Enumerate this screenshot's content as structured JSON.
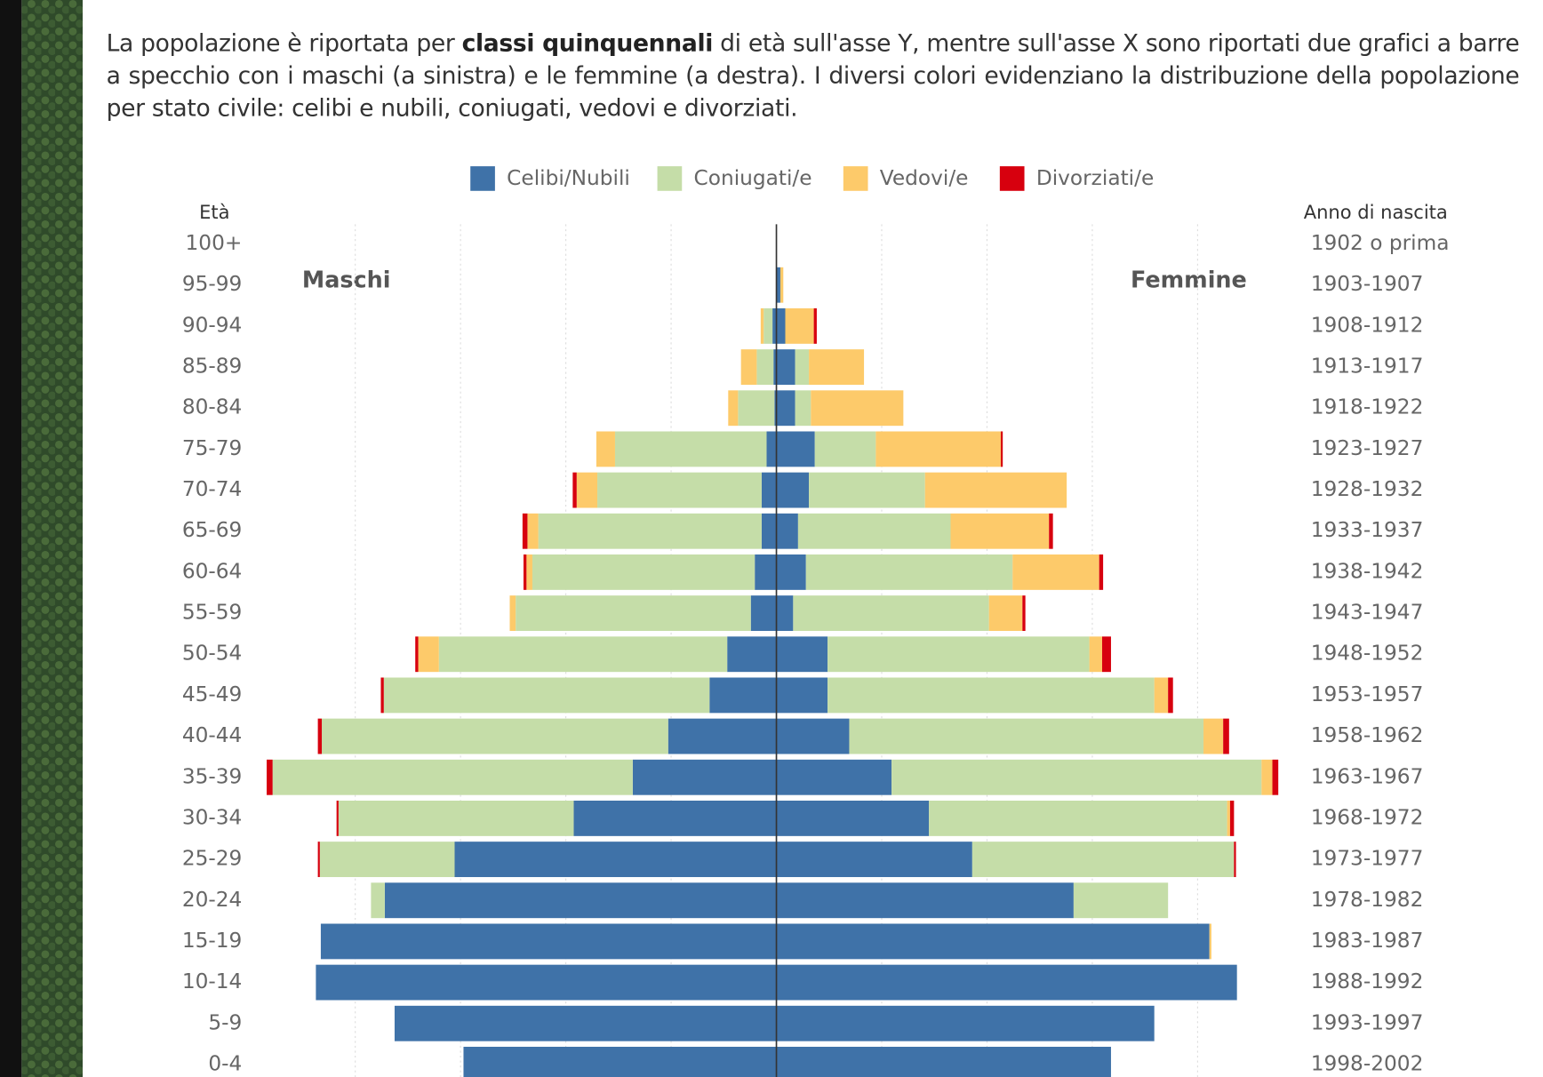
{
  "intro": {
    "before": "La popolazione è riportata per ",
    "bold": "classi quinquennali",
    "after": " di età sull'asse Y, mentre sull'asse X sono riportati due grafici a barre a specchio con i maschi (a sinistra) e le femmine (a destra). I diversi colori evidenziano la distribuzione della popolazione per stato civile: celibi e nubili, coniugati, vedovi e divorziati."
  },
  "chart_data": {
    "type": "pyramid",
    "y_label": "Età",
    "y2_label": "Anno di nascita",
    "left_label": "Maschi",
    "right_label": "Femmine",
    "categories": [
      "100+",
      "95-99",
      "90-94",
      "85-89",
      "80-84",
      "75-79",
      "70-74",
      "65-69",
      "60-64",
      "55-59",
      "50-54",
      "45-49",
      "40-44",
      "35-39",
      "30-34",
      "25-29",
      "20-24",
      "15-19",
      "10-14",
      "5-9",
      "0-4"
    ],
    "birth_years": [
      "1902 o prima",
      "1903-1907",
      "1908-1912",
      "1913-1917",
      "1918-1922",
      "1923-1927",
      "1928-1932",
      "1933-1937",
      "1938-1942",
      "1943-1947",
      "1948-1952",
      "1953-1957",
      "1958-1962",
      "1963-1967",
      "1968-1972",
      "1973-1977",
      "1978-1982",
      "1983-1987",
      "1988-1992",
      "1993-1997",
      "1998-2002"
    ],
    "series": [
      {
        "name": "Celibi/Nubili",
        "color": "#3f72a8",
        "male": [
          0,
          0,
          4,
          3,
          2,
          10,
          15,
          15,
          22,
          26,
          50,
          68,
          110,
          146,
          206,
          327,
          398,
          463,
          468,
          388,
          318
        ],
        "female": [
          0,
          4,
          9,
          19,
          19,
          39,
          33,
          22,
          30,
          17,
          52,
          52,
          74,
          117,
          155,
          199,
          302,
          440,
          468,
          384,
          340
        ]
      },
      {
        "name": "Coniugati/e",
        "color": "#c5dda8",
        "male": [
          0,
          0,
          9,
          17,
          37,
          154,
          167,
          227,
          226,
          239,
          293,
          331,
          352,
          366,
          239,
          137,
          14,
          0,
          0,
          0,
          0
        ],
        "female": [
          0,
          0,
          0,
          14,
          16,
          62,
          118,
          155,
          210,
          199,
          266,
          332,
          360,
          376,
          303,
          266,
          96,
          0,
          0,
          0,
          0
        ]
      },
      {
        "name": "Vedovi/e",
        "color": "#fdca6a",
        "male": [
          0,
          0,
          3,
          16,
          10,
          19,
          21,
          11,
          6,
          6,
          21,
          0,
          0,
          0,
          0,
          0,
          0,
          0,
          0,
          0,
          0
        ],
        "female": [
          0,
          3,
          29,
          56,
          94,
          127,
          144,
          100,
          88,
          34,
          13,
          14,
          20,
          11,
          3,
          0,
          0,
          2,
          0,
          0,
          0
        ]
      },
      {
        "name": "Divorziati/e",
        "color": "#d7000e",
        "male": [
          0,
          0,
          0,
          0,
          0,
          0,
          4,
          5,
          3,
          0,
          3,
          3,
          4,
          6,
          2,
          2,
          0,
          0,
          0,
          0,
          0
        ],
        "female": [
          0,
          0,
          3,
          0,
          0,
          2,
          0,
          4,
          4,
          3,
          9,
          5,
          6,
          6,
          4,
          2,
          0,
          0,
          0,
          0,
          0
        ]
      }
    ],
    "xlim": [
      -535,
      535
    ],
    "xticks": [
      -428,
      -321,
      -214,
      -107,
      0,
      107,
      214,
      321,
      428
    ],
    "grid": true
  }
}
